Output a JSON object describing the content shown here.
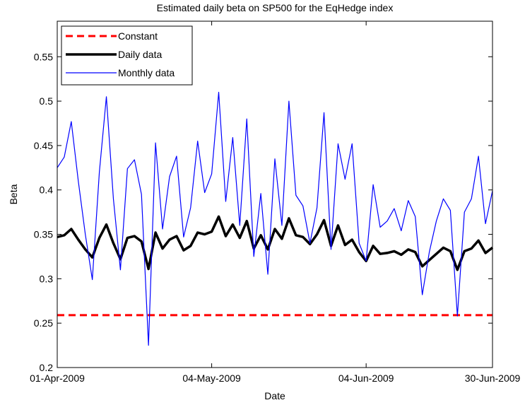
{
  "chart_data": {
    "type": "line",
    "title": "Estimated daily beta on SP500 for the EqHedge index",
    "xlabel": "Date",
    "ylabel": "Beta",
    "categories": [
      "01-Apr-2009",
      null,
      null,
      null,
      null,
      null,
      null,
      null,
      null,
      null,
      null,
      null,
      null,
      null,
      null,
      null,
      null,
      null,
      null,
      null,
      null,
      null,
      "04-May-2009",
      null,
      null,
      null,
      null,
      null,
      null,
      null,
      null,
      null,
      null,
      null,
      null,
      null,
      null,
      null,
      null,
      null,
      null,
      null,
      null,
      null,
      "04-Jun-2009",
      null,
      null,
      null,
      null,
      null,
      null,
      null,
      null,
      null,
      null,
      null,
      null,
      null,
      null,
      null,
      null,
      null,
      "30-Jun-2009"
    ],
    "ylim": [
      0.2,
      0.59
    ],
    "yticks": [
      0.2,
      0.25,
      0.3,
      0.35,
      0.4,
      0.45,
      0.5,
      0.55
    ],
    "legend": "upper left",
    "series": [
      {
        "name": "Constant",
        "color": "#ff0000",
        "style": "dashed",
        "values": [
          0.259,
          0.259,
          0.259,
          0.259,
          0.259,
          0.259,
          0.259,
          0.259,
          0.259,
          0.259,
          0.259,
          0.259,
          0.259,
          0.259,
          0.259,
          0.259,
          0.259,
          0.259,
          0.259,
          0.259,
          0.259,
          0.259,
          0.259,
          0.259,
          0.259,
          0.259,
          0.259,
          0.259,
          0.259,
          0.259,
          0.259,
          0.259,
          0.259,
          0.259,
          0.259,
          0.259,
          0.259,
          0.259,
          0.259,
          0.259,
          0.259,
          0.259,
          0.259,
          0.259,
          0.259,
          0.259,
          0.259,
          0.259,
          0.259,
          0.259,
          0.259,
          0.259,
          0.259,
          0.259,
          0.259,
          0.259,
          0.259,
          0.259,
          0.259,
          0.259,
          0.259,
          0.259,
          0.259
        ]
      },
      {
        "name": "Daily data",
        "color": "#000000",
        "style": "thick",
        "values": [
          0.347,
          0.349,
          0.356,
          0.344,
          0.333,
          0.324,
          0.346,
          0.361,
          0.34,
          0.322,
          0.346,
          0.348,
          0.342,
          0.311,
          0.352,
          0.334,
          0.344,
          0.348,
          0.332,
          0.337,
          0.352,
          0.35,
          0.353,
          0.37,
          0.348,
          0.361,
          0.346,
          0.365,
          0.334,
          0.349,
          0.333,
          0.356,
          0.345,
          0.368,
          0.349,
          0.347,
          0.339,
          0.35,
          0.366,
          0.337,
          0.36,
          0.338,
          0.344,
          0.33,
          0.32,
          0.337,
          0.328,
          0.329,
          0.331,
          0.327,
          0.333,
          0.33,
          0.314,
          0.321,
          0.328,
          0.335,
          0.331,
          0.31,
          0.331,
          0.334,
          0.343,
          0.329,
          0.335
        ]
      },
      {
        "name": "Monthly data",
        "color": "#0000ff",
        "style": "thin",
        "values": [
          0.425,
          0.437,
          0.477,
          0.41,
          0.35,
          0.299,
          0.42,
          0.505,
          0.39,
          0.31,
          0.424,
          0.434,
          0.395,
          0.225,
          0.453,
          0.356,
          0.415,
          0.438,
          0.347,
          0.38,
          0.455,
          0.397,
          0.418,
          0.51,
          0.387,
          0.459,
          0.36,
          0.48,
          0.325,
          0.396,
          0.305,
          0.435,
          0.36,
          0.5,
          0.394,
          0.382,
          0.34,
          0.38,
          0.487,
          0.333,
          0.452,
          0.412,
          0.452,
          0.34,
          0.32,
          0.406,
          0.358,
          0.365,
          0.379,
          0.354,
          0.388,
          0.37,
          0.282,
          0.33,
          0.365,
          0.39,
          0.377,
          0.258,
          0.375,
          0.39,
          0.438,
          0.362,
          0.399
        ]
      }
    ]
  }
}
